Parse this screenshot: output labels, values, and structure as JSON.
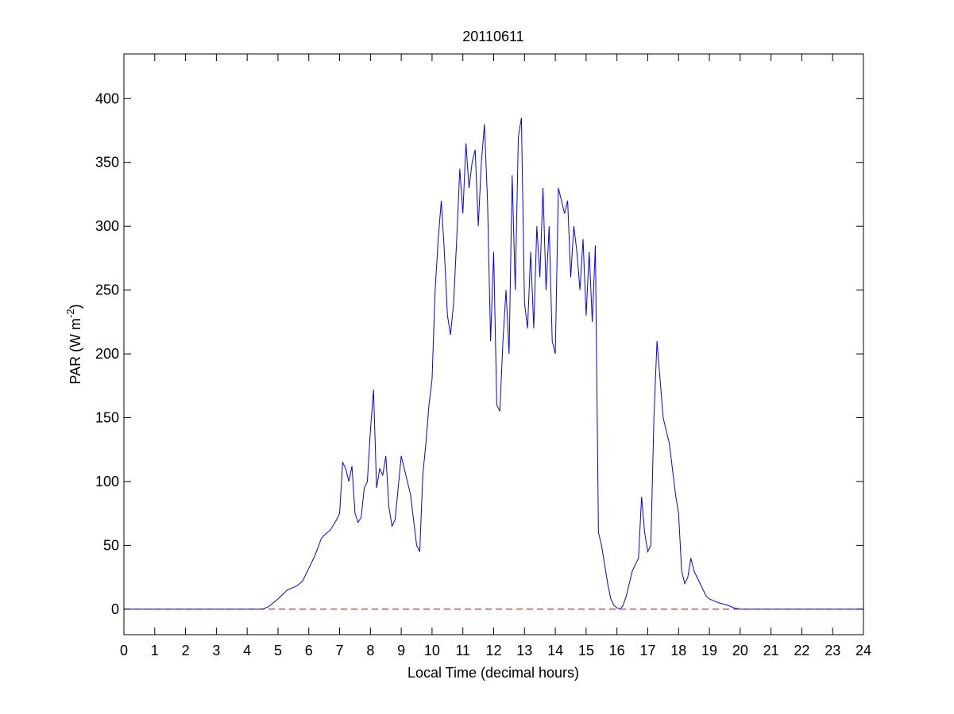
{
  "chart_data": {
    "type": "line",
    "title": "20110611",
    "xlabel": "Local Time (decimal hours)",
    "ylabel": {
      "prefix": "PAR (W m",
      "superscript": "-2",
      "suffix": ")"
    },
    "xlim": [
      0,
      24
    ],
    "ylim": [
      -20,
      435
    ],
    "xticks": [
      "0",
      "1",
      "2",
      "3",
      "4",
      "5",
      "6",
      "7",
      "8",
      "9",
      "10",
      "11",
      "12",
      "13",
      "14",
      "15",
      "16",
      "17",
      "18",
      "19",
      "20",
      "21",
      "22",
      "23",
      "24"
    ],
    "yticks": [
      "0",
      "50",
      "100",
      "150",
      "200",
      "250",
      "300",
      "350",
      "400"
    ],
    "grid": false,
    "series": [
      {
        "color": "#0000ff",
        "style": "solid",
        "x": [
          0,
          4.5,
          4.7,
          5.0,
          5.3,
          5.6,
          5.8,
          6.0,
          6.2,
          6.4,
          6.5,
          6.7,
          6.9,
          7.0,
          7.1,
          7.2,
          7.3,
          7.4,
          7.5,
          7.6,
          7.7,
          7.8,
          7.9,
          8.0,
          8.1,
          8.2,
          8.3,
          8.4,
          8.5,
          8.6,
          8.7,
          8.8,
          8.9,
          9.0,
          9.1,
          9.2,
          9.3,
          9.4,
          9.5,
          9.6,
          9.7,
          9.8,
          9.9,
          10.0,
          10.1,
          10.2,
          10.3,
          10.4,
          10.5,
          10.6,
          10.7,
          10.8,
          10.9,
          11.0,
          11.1,
          11.2,
          11.3,
          11.4,
          11.5,
          11.6,
          11.7,
          11.8,
          11.9,
          12.0,
          12.1,
          12.2,
          12.3,
          12.4,
          12.5,
          12.6,
          12.7,
          12.8,
          12.9,
          13.0,
          13.1,
          13.2,
          13.3,
          13.4,
          13.5,
          13.6,
          13.7,
          13.8,
          13.9,
          14.0,
          14.1,
          14.2,
          14.3,
          14.4,
          14.5,
          14.6,
          14.7,
          14.8,
          14.9,
          15.0,
          15.1,
          15.2,
          15.3,
          15.4,
          15.5,
          15.6,
          15.7,
          15.8,
          15.9,
          16.0,
          16.1,
          16.2,
          16.3,
          16.4,
          16.5,
          16.6,
          16.7,
          16.8,
          16.9,
          17.0,
          17.1,
          17.2,
          17.3,
          17.4,
          17.5,
          17.6,
          17.7,
          17.8,
          17.9,
          18.0,
          18.1,
          18.2,
          18.3,
          18.4,
          18.5,
          18.6,
          18.7,
          18.8,
          18.9,
          19.0,
          19.3,
          19.6,
          19.8,
          20.0,
          24
        ],
        "y": [
          0,
          0,
          2,
          8,
          15,
          18,
          22,
          32,
          42,
          55,
          58,
          62,
          70,
          75,
          115,
          110,
          100,
          112,
          75,
          68,
          72,
          95,
          100,
          140,
          172,
          95,
          110,
          105,
          120,
          80,
          65,
          70,
          95,
          120,
          110,
          100,
          90,
          70,
          50,
          45,
          105,
          130,
          160,
          180,
          250,
          290,
          320,
          280,
          230,
          215,
          240,
          290,
          345,
          310,
          365,
          330,
          350,
          360,
          300,
          350,
          380,
          320,
          210,
          280,
          160,
          155,
          210,
          250,
          200,
          340,
          250,
          370,
          385,
          240,
          220,
          280,
          220,
          300,
          260,
          330,
          250,
          300,
          210,
          200,
          330,
          320,
          310,
          320,
          260,
          300,
          280,
          250,
          290,
          230,
          280,
          225,
          285,
          60,
          50,
          35,
          20,
          8,
          3,
          1,
          0,
          3,
          10,
          20,
          30,
          35,
          40,
          88,
          60,
          45,
          50,
          150,
          210,
          180,
          150,
          140,
          130,
          110,
          90,
          75,
          30,
          20,
          25,
          40,
          30,
          25,
          20,
          15,
          10,
          8,
          5,
          3,
          1,
          0,
          0
        ]
      },
      {
        "color": "#cc0000",
        "style": "dashed",
        "x": [
          0,
          24
        ],
        "y": [
          0,
          0
        ]
      }
    ]
  }
}
